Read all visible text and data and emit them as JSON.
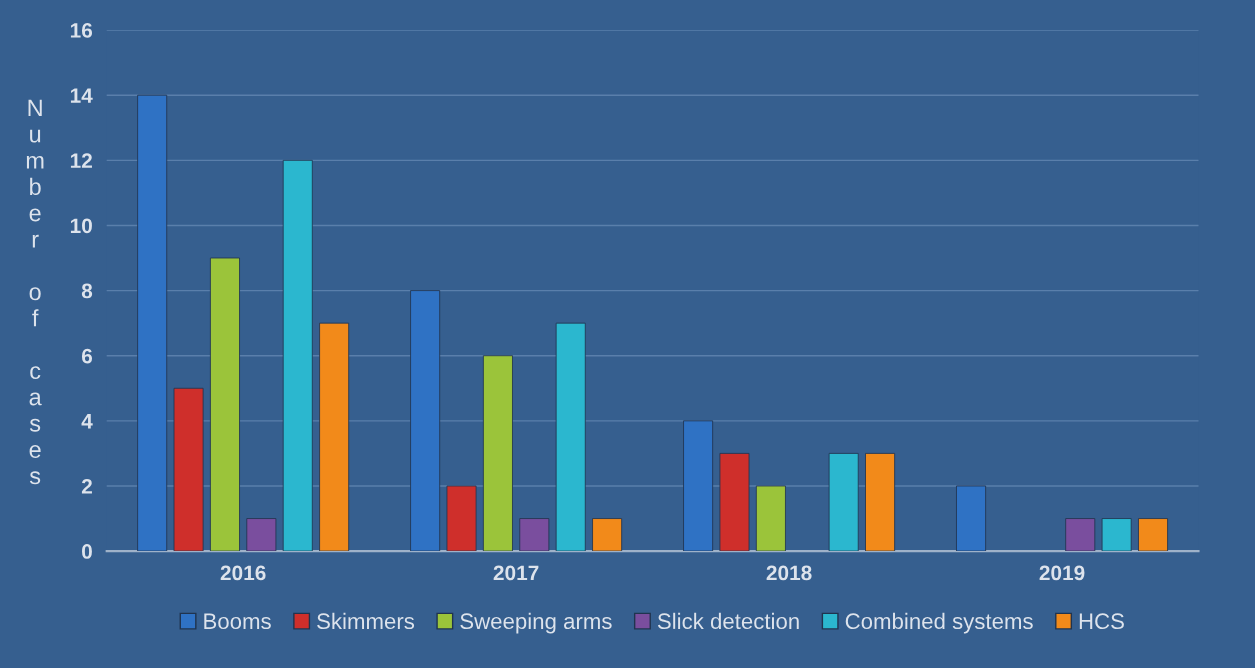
{
  "chart_data": {
    "type": "bar",
    "ylabel": "Number of cases",
    "categories": [
      "2016",
      "2017",
      "2018",
      "2019"
    ],
    "series": [
      {
        "name": "Booms",
        "color": "#2f72c4",
        "values": [
          14,
          8,
          4,
          2
        ]
      },
      {
        "name": "Skimmers",
        "color": "#cf2f2b",
        "values": [
          5,
          2,
          3,
          0
        ]
      },
      {
        "name": "Sweeping arms",
        "color": "#9bc43a",
        "values": [
          9,
          6,
          2,
          0
        ]
      },
      {
        "name": "Slick detection",
        "color": "#7a4e9e",
        "values": [
          1,
          1,
          0,
          1
        ]
      },
      {
        "name": "Combined systems",
        "color": "#2bb7cf",
        "values": [
          12,
          7,
          3,
          1
        ]
      },
      {
        "name": "HCS",
        "color": "#f28a1a",
        "values": [
          7,
          1,
          3,
          1
        ]
      }
    ],
    "ylim": [
      0,
      16
    ],
    "yticks": [
      0,
      2,
      4,
      6,
      8,
      10,
      12,
      14,
      16
    ],
    "grid": "y",
    "legend": "bottom"
  }
}
